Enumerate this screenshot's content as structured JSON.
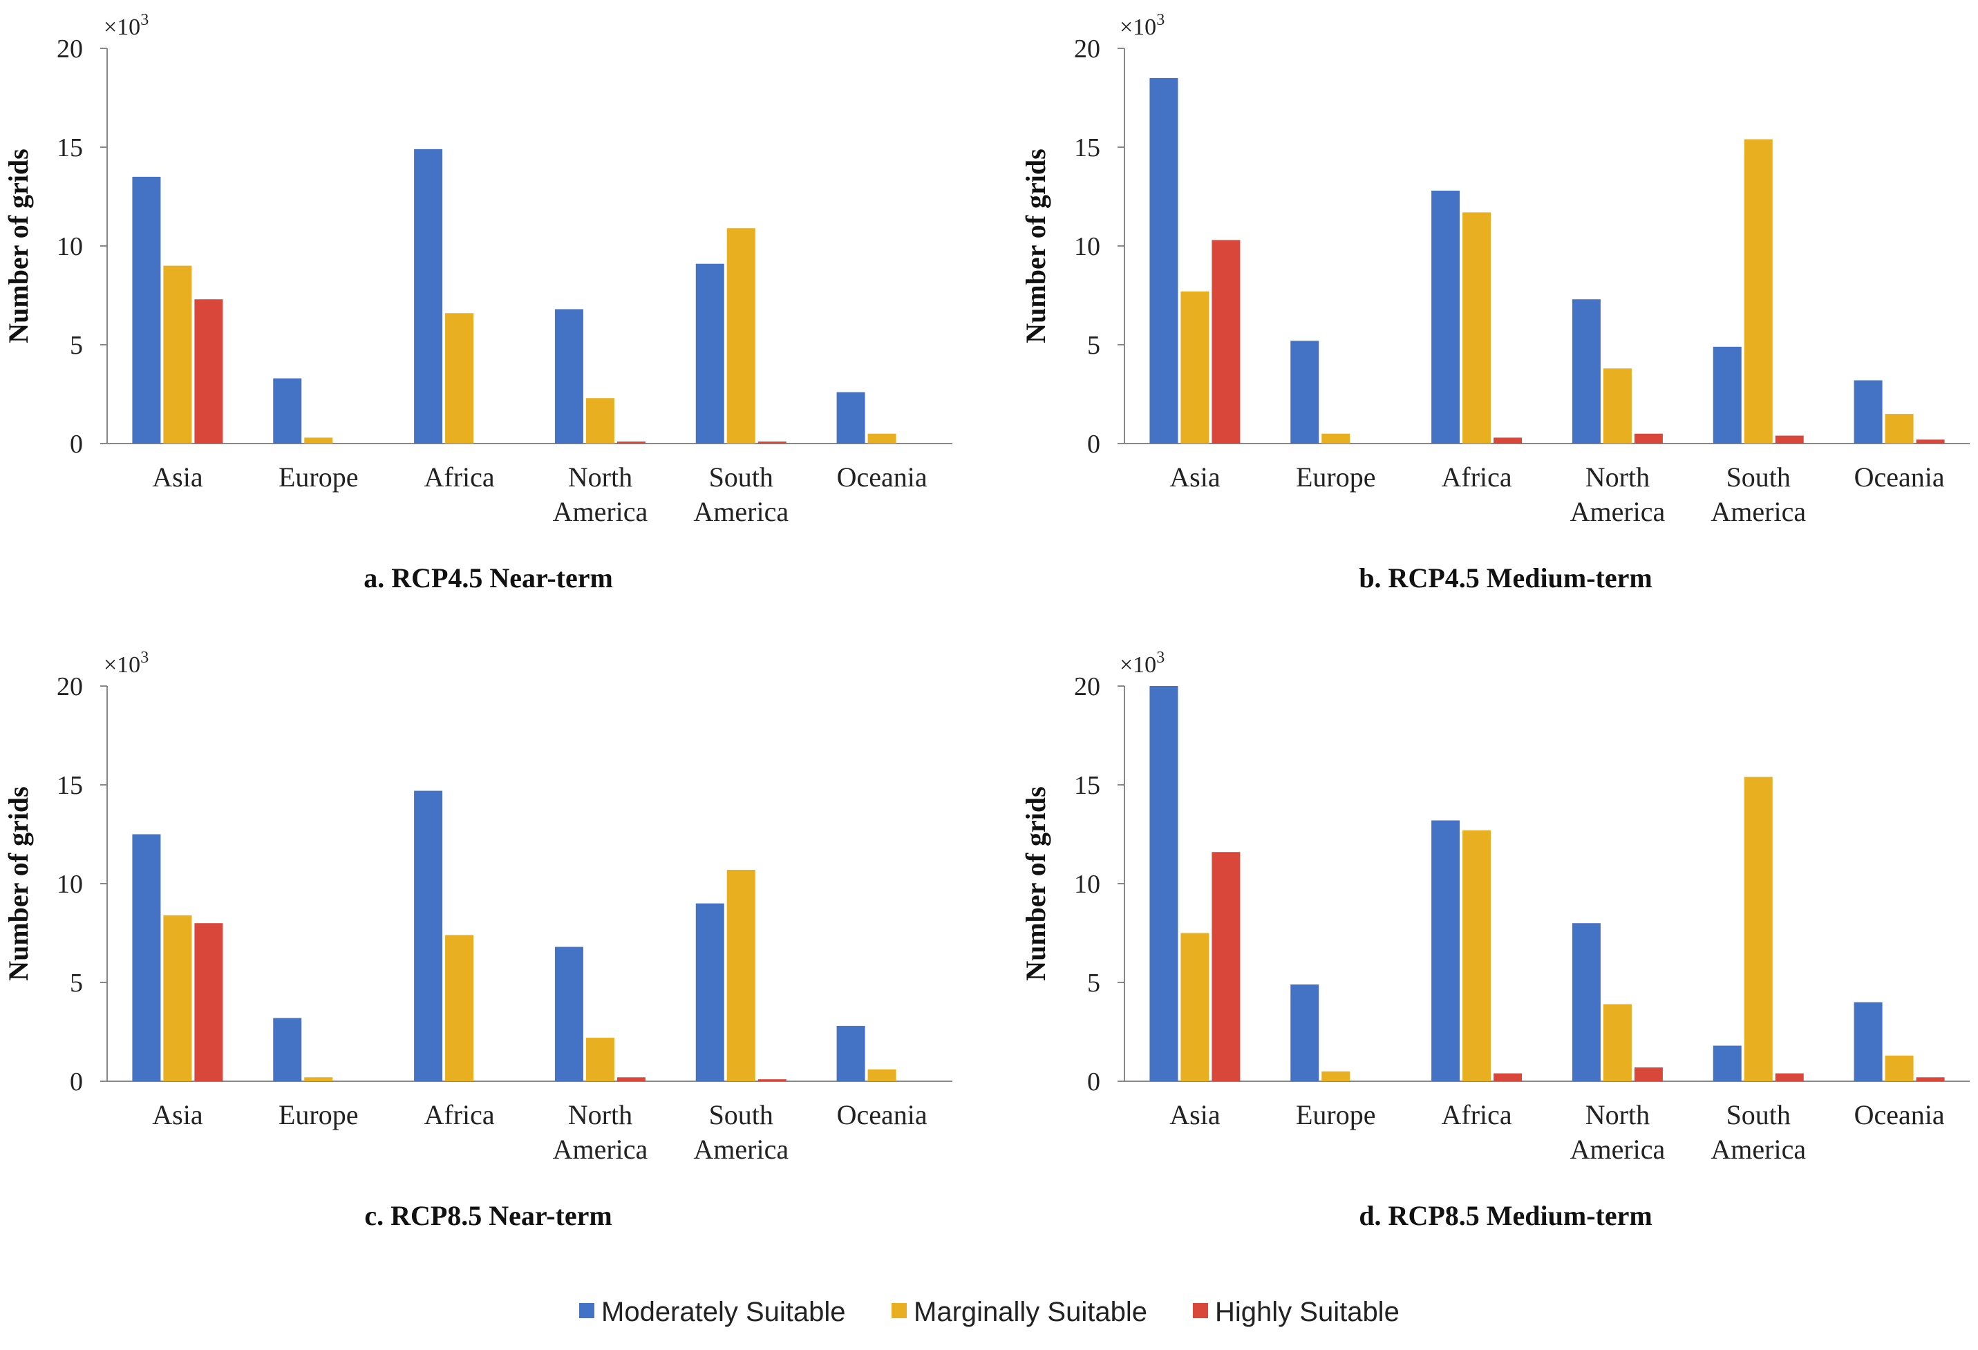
{
  "chart_data": [
    {
      "type": "bar",
      "title": "a. RCP4.5 Near-term",
      "ylabel": "Number of grids",
      "y_multiplier": "×10",
      "y_multiplier_exp": "3",
      "ylim": [
        0,
        20
      ],
      "yticks": [
        "0",
        "5",
        "10",
        "15",
        "20"
      ],
      "categories": [
        "Asia",
        "Europe",
        "Africa",
        "North America",
        "South America",
        "Oceania"
      ],
      "category_lines": [
        [
          "Asia"
        ],
        [
          "Europe"
        ],
        [
          "Africa"
        ],
        [
          "North",
          "America"
        ],
        [
          "South",
          "America"
        ],
        [
          "Oceania"
        ]
      ],
      "series": [
        {
          "name": "Moderately Suitable",
          "values": [
            13.5,
            3.3,
            14.9,
            6.8,
            9.1,
            2.6
          ]
        },
        {
          "name": "Marginally Suitable",
          "values": [
            9.0,
            0.3,
            6.6,
            2.3,
            10.9,
            0.5
          ]
        },
        {
          "name": "Highly Suitable",
          "values": [
            7.3,
            0.0,
            0.0,
            0.1,
            0.1,
            0.0
          ]
        }
      ]
    },
    {
      "type": "bar",
      "title": "b. RCP4.5 Medium-term",
      "ylabel": "Number of grids",
      "y_multiplier": "×10",
      "y_multiplier_exp": "3",
      "ylim": [
        0,
        20
      ],
      "yticks": [
        "0",
        "5",
        "10",
        "15",
        "20"
      ],
      "categories": [
        "Asia",
        "Europe",
        "Africa",
        "North America",
        "South America",
        "Oceania"
      ],
      "category_lines": [
        [
          "Asia"
        ],
        [
          "Europe"
        ],
        [
          "Africa"
        ],
        [
          "North",
          "America"
        ],
        [
          "South",
          "America"
        ],
        [
          "Oceania"
        ]
      ],
      "series": [
        {
          "name": "Moderately Suitable",
          "values": [
            18.5,
            5.2,
            12.8,
            7.3,
            4.9,
            3.2
          ]
        },
        {
          "name": "Marginally Suitable",
          "values": [
            7.7,
            0.5,
            11.7,
            3.8,
            15.4,
            1.5
          ]
        },
        {
          "name": "Highly Suitable",
          "values": [
            10.3,
            0.0,
            0.3,
            0.5,
            0.4,
            0.2
          ]
        }
      ]
    },
    {
      "type": "bar",
      "title": "c. RCP8.5 Near-term",
      "ylabel": "Number of grids",
      "y_multiplier": "×10",
      "y_multiplier_exp": "3",
      "ylim": [
        0,
        20
      ],
      "yticks": [
        "0",
        "5",
        "10",
        "15",
        "20"
      ],
      "categories": [
        "Asia",
        "Europe",
        "Africa",
        "North America",
        "South America",
        "Oceania"
      ],
      "category_lines": [
        [
          "Asia"
        ],
        [
          "Europe"
        ],
        [
          "Africa"
        ],
        [
          "North",
          "America"
        ],
        [
          "South",
          "America"
        ],
        [
          "Oceania"
        ]
      ],
      "series": [
        {
          "name": "Moderately Suitable",
          "values": [
            12.5,
            3.2,
            14.7,
            6.8,
            9.0,
            2.8
          ]
        },
        {
          "name": "Marginally Suitable",
          "values": [
            8.4,
            0.2,
            7.4,
            2.2,
            10.7,
            0.6
          ]
        },
        {
          "name": "Highly Suitable",
          "values": [
            8.0,
            0.0,
            0.0,
            0.2,
            0.1,
            0.0
          ]
        }
      ]
    },
    {
      "type": "bar",
      "title": "d. RCP8.5 Medium-term",
      "ylabel": "Number of grids",
      "y_multiplier": "×10",
      "y_multiplier_exp": "3",
      "ylim": [
        0,
        20
      ],
      "yticks": [
        "0",
        "5",
        "10",
        "15",
        "20"
      ],
      "categories": [
        "Asia",
        "Europe",
        "Africa",
        "North America",
        "South America",
        "Oceania"
      ],
      "category_lines": [
        [
          "Asia"
        ],
        [
          "Europe"
        ],
        [
          "Africa"
        ],
        [
          "North",
          "America"
        ],
        [
          "South",
          "America"
        ],
        [
          "Oceania"
        ]
      ],
      "series": [
        {
          "name": "Moderately Suitable",
          "values": [
            20.0,
            4.9,
            13.2,
            8.0,
            1.8,
            4.0
          ]
        },
        {
          "name": "Marginally Suitable",
          "values": [
            7.5,
            0.5,
            12.7,
            3.9,
            15.4,
            1.3
          ]
        },
        {
          "name": "Highly Suitable",
          "values": [
            11.6,
            0.0,
            0.4,
            0.7,
            0.4,
            0.2
          ]
        }
      ]
    }
  ],
  "legend": {
    "position": "bottom-center",
    "items": [
      {
        "label": "Moderately Suitable",
        "color": "#4472C4"
      },
      {
        "label": "Marginally Suitable",
        "color": "#E8B020"
      },
      {
        "label": "Highly Suitable",
        "color": "#D9463A"
      }
    ]
  },
  "colors": {
    "axis": "#888888",
    "text": "#222222"
  }
}
